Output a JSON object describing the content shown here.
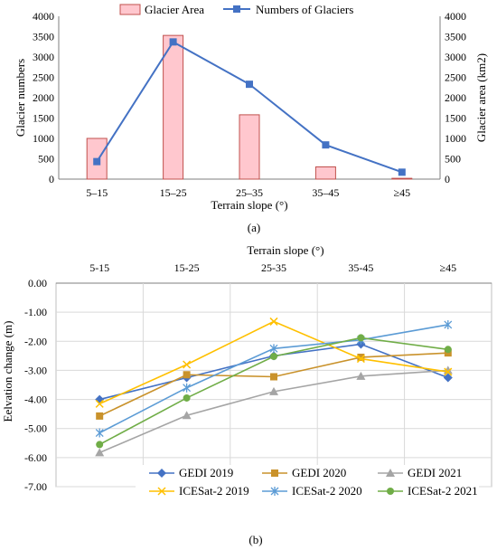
{
  "chart_data": [
    {
      "id": "a",
      "type": "bar+line",
      "caption": "(a)",
      "categories": [
        "5–15",
        "15–25",
        "25–35",
        "35–45",
        "≥45"
      ],
      "xlabel": "Terrain slope (°)",
      "ylabel_left": "Glacier numbers",
      "ylabel_right": "Glacier area (km2)",
      "ylim_left": [
        0,
        4000
      ],
      "ylim_right": [
        0,
        4000
      ],
      "yticks_left": [
        "0",
        "500",
        "1000",
        "1500",
        "2000",
        "2500",
        "3000",
        "3500",
        "4000"
      ],
      "yticks_right": [
        "0",
        "500",
        "1000",
        "1500",
        "2000",
        "2500",
        "3000",
        "3500",
        "4000"
      ],
      "legend_position": "top",
      "series": [
        {
          "name": "Glacier Area",
          "kind": "bar",
          "axis": "right",
          "values": [
            1000,
            3530,
            1580,
            300,
            20
          ],
          "fill": "#ffc7ce",
          "stroke": "#c0504d"
        },
        {
          "name": "Numbers of Glaciers",
          "kind": "line",
          "axis": "left",
          "values": [
            430,
            3370,
            2330,
            840,
            170
          ],
          "color": "#4472c4",
          "marker": "square"
        }
      ]
    },
    {
      "id": "b",
      "type": "line",
      "caption": "(b)",
      "categories": [
        "5-15",
        "15-25",
        "25-35",
        "35-45",
        "≥45"
      ],
      "xlabel": "Terrain slope (°)",
      "xaxis_position": "top",
      "ylabel": "Eelvation change (m)",
      "ylim": [
        -7,
        0
      ],
      "yticks": [
        "0.00",
        "-1.00",
        "-2.00",
        "-3.00",
        "-4.00",
        "-5.00",
        "-6.00",
        "-7.00"
      ],
      "grid": true,
      "legend_position": "bottom",
      "series": [
        {
          "name": "GEDI 2019",
          "values": [
            -4.0,
            -3.25,
            -2.5,
            -2.1,
            -3.25
          ],
          "color": "#4472c4",
          "marker": "diamond"
        },
        {
          "name": "GEDI 2020",
          "values": [
            -4.57,
            -3.15,
            -3.22,
            -2.55,
            -2.4
          ],
          "color": "#c9922b",
          "marker": "square"
        },
        {
          "name": "GEDI 2021",
          "values": [
            -5.83,
            -4.55,
            -3.73,
            -3.2,
            -3.0
          ],
          "color": "#a5a5a5",
          "marker": "triangle"
        },
        {
          "name": "ICESat-2 2019",
          "values": [
            -4.15,
            -2.8,
            -1.32,
            -2.6,
            -3.05
          ],
          "color": "#ffc000",
          "marker": "x"
        },
        {
          "name": "ICESat-2 2020",
          "values": [
            -5.15,
            -3.6,
            -2.25,
            -1.95,
            -1.43
          ],
          "color": "#5b9bd5",
          "marker": "star"
        },
        {
          "name": "ICESat-2 2021",
          "values": [
            -5.55,
            -3.95,
            -2.52,
            -1.88,
            -2.28
          ],
          "color": "#70ad47",
          "marker": "circle"
        }
      ]
    }
  ]
}
